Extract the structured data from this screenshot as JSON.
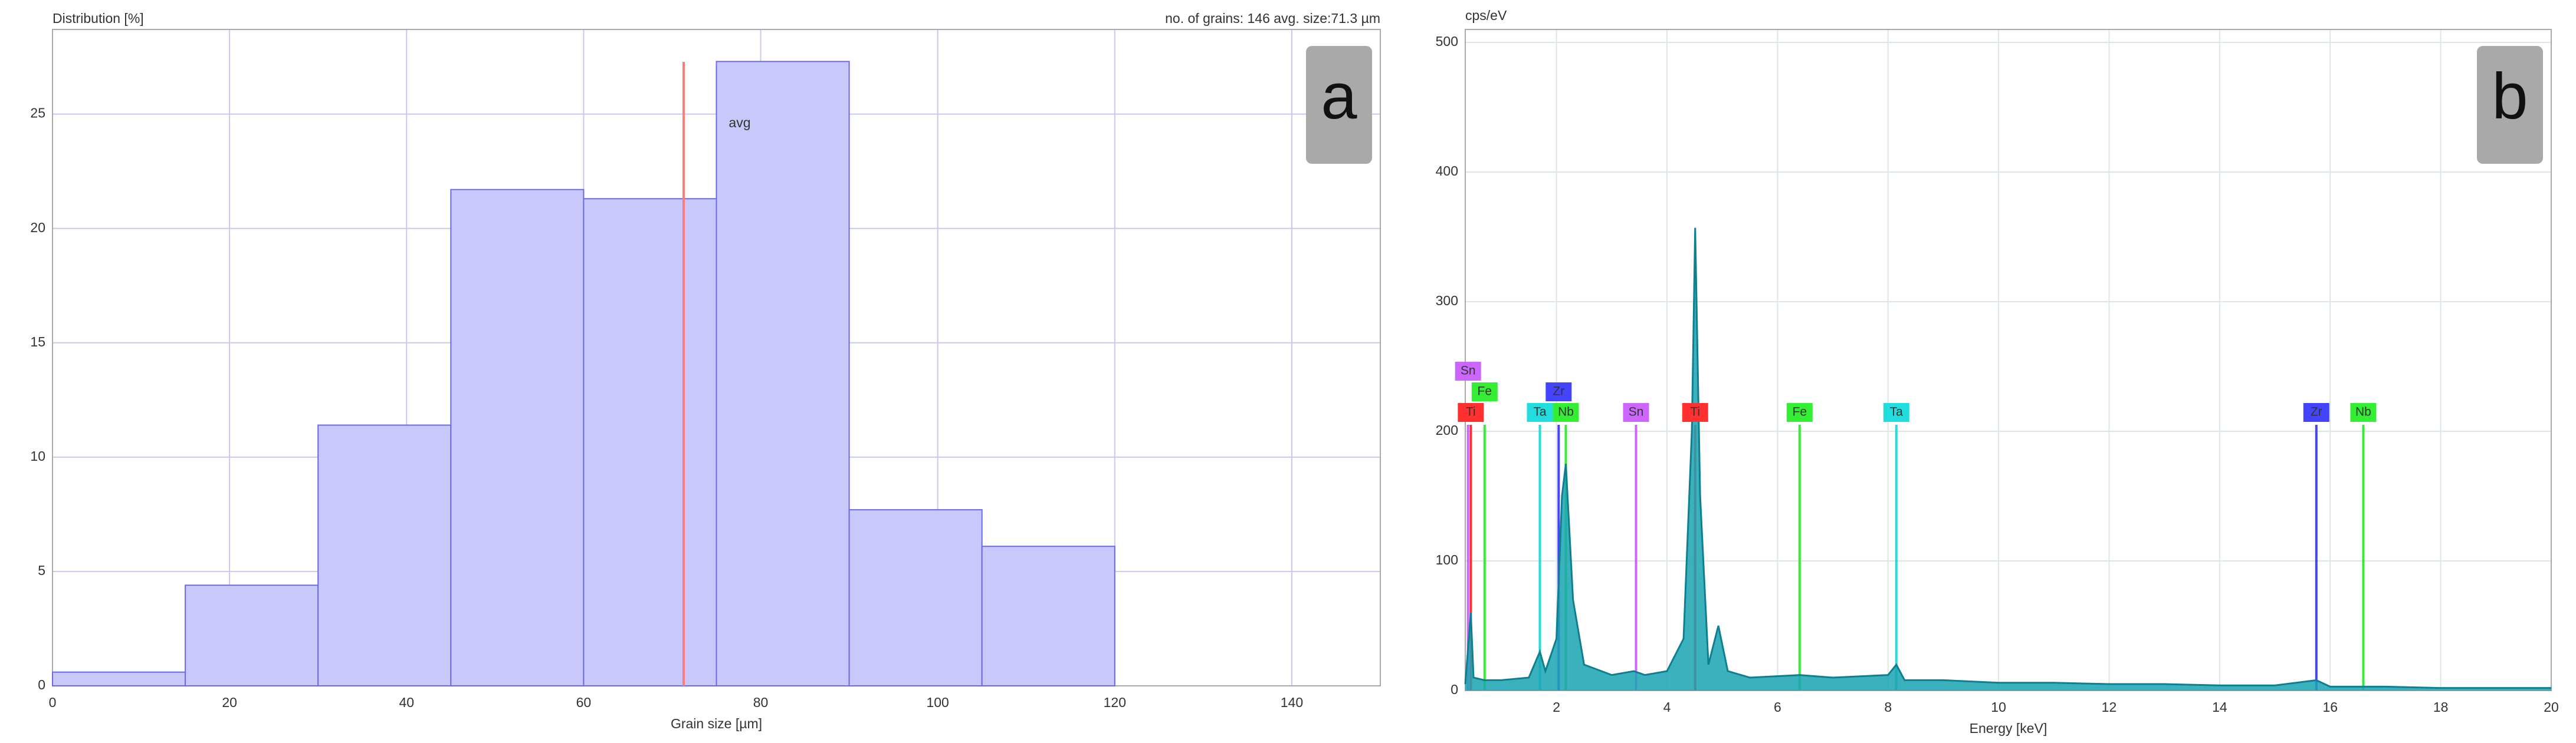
{
  "chart_data": [
    {
      "type": "histogram",
      "title": "Distribution [%]",
      "subtitle": "no. of grains: 146  avg. size:71.3 µm",
      "panel_label": "a",
      "x_label": "Grain size [µm]",
      "bins": [
        0,
        15,
        30,
        45,
        60,
        75,
        90,
        105,
        120
      ],
      "values": [
        0.6,
        4.4,
        11.4,
        21.7,
        21.3,
        27.3,
        7.7,
        6.1
      ],
      "color": "#c8c8fa",
      "edge_color": "#6b6be6",
      "avg_line": {
        "value": 71.3,
        "label": "avg",
        "color": "#ff7a7a"
      },
      "xlim": [
        0,
        150
      ],
      "xticks": [
        0,
        20,
        40,
        60,
        80,
        100,
        120,
        140
      ],
      "ylim": [
        0,
        28.7
      ],
      "yticks": [
        0,
        5,
        10,
        15,
        20,
        25
      ],
      "grid": true
    },
    {
      "type": "area",
      "y_label": "cps/eV",
      "x_label": "Energy [keV]",
      "panel_label": "b",
      "color": "#1aa3b3",
      "x": [
        0.35,
        0.45,
        0.5,
        0.7,
        1.0,
        1.5,
        1.7,
        1.8,
        2.0,
        2.1,
        2.17,
        2.3,
        2.5,
        3.0,
        3.4,
        3.6,
        4.0,
        4.3,
        4.45,
        4.51,
        4.6,
        4.75,
        4.93,
        5.1,
        5.5,
        6.4,
        7.0,
        8.0,
        8.15,
        8.3,
        9.0,
        10,
        11,
        12,
        13,
        14,
        15,
        15.75,
        16,
        17,
        18,
        19,
        20
      ],
      "values": [
        5,
        60,
        10,
        8,
        8,
        10,
        30,
        15,
        40,
        150,
        175,
        70,
        20,
        12,
        15,
        12,
        15,
        40,
        200,
        357,
        150,
        20,
        50,
        15,
        10,
        12,
        10,
        12,
        20,
        8,
        8,
        6,
        6,
        5,
        5,
        4,
        4,
        8,
        3,
        3,
        2,
        2,
        2
      ],
      "markers": [
        {
          "label": "Ti",
          "x": 0.45,
          "color": "#ff3030"
        },
        {
          "label": "Fe",
          "x": 0.7,
          "color": "#33ee33"
        },
        {
          "label": "Sn",
          "x": 0.4,
          "color": "#cc66ff"
        },
        {
          "label": "Ta",
          "x": 1.7,
          "color": "#22dddd"
        },
        {
          "label": "Zr",
          "x": 2.04,
          "color": "#4444ff"
        },
        {
          "label": "Nb",
          "x": 2.17,
          "color": "#33ee33"
        },
        {
          "label": "Sn",
          "x": 3.44,
          "color": "#cc66ff"
        },
        {
          "label": "Ti",
          "x": 4.51,
          "color": "#ff3030"
        },
        {
          "label": "Fe",
          "x": 6.4,
          "color": "#33ee33"
        },
        {
          "label": "Ta",
          "x": 8.15,
          "color": "#22dddd"
        },
        {
          "label": "Zr",
          "x": 15.75,
          "color": "#4444ff"
        },
        {
          "label": "Nb",
          "x": 16.6,
          "color": "#33ee33"
        }
      ],
      "xlim": [
        0.35,
        20
      ],
      "xticks": [
        2,
        4,
        6,
        8,
        10,
        12,
        14,
        16,
        18,
        20
      ],
      "ylim": [
        0,
        510
      ],
      "yticks": [
        0,
        100,
        200,
        300,
        400,
        500
      ],
      "grid": true
    }
  ]
}
